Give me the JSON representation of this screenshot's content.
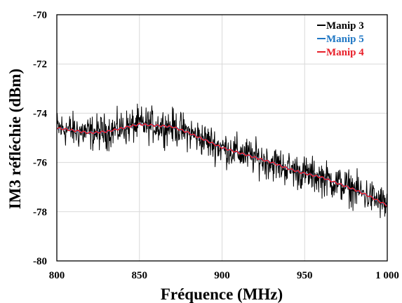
{
  "chart_data": {
    "type": "line",
    "title": "",
    "xlabel": "Fréquence (MHz)",
    "ylabel": "IM3 réfléchie (dBm)",
    "xlim": [
      800,
      1000
    ],
    "ylim": [
      -80,
      -70
    ],
    "x_ticks": [
      800,
      850,
      900,
      950,
      1000
    ],
    "x_tick_labels": [
      "800",
      "850",
      "900",
      "950",
      "1 000"
    ],
    "y_ticks": [
      -80,
      -78,
      -76,
      -74,
      -72,
      -70
    ],
    "y_tick_labels": [
      "-80",
      "-78",
      "-76",
      "-74",
      "-72",
      "-70"
    ],
    "grid": true,
    "legend_position": "top-right",
    "series": [
      {
        "name": "Manip 3",
        "color": "#000000",
        "style": "noisy",
        "noise_amplitude_db": 0.35,
        "x": [
          800,
          810,
          820,
          830,
          840,
          850,
          860,
          870,
          880,
          890,
          900,
          910,
          920,
          930,
          940,
          950,
          960,
          970,
          980,
          990,
          1000
        ],
        "values": [
          -74.6,
          -74.7,
          -74.8,
          -74.75,
          -74.6,
          -74.45,
          -74.5,
          -74.55,
          -74.8,
          -75.1,
          -75.4,
          -75.6,
          -75.8,
          -76.0,
          -76.25,
          -76.45,
          -76.6,
          -76.85,
          -77.1,
          -77.4,
          -77.75
        ]
      },
      {
        "name": "Manip 5",
        "color": "#1f77c4",
        "style": "smooth",
        "x": [
          800,
          810,
          820,
          830,
          840,
          850,
          860,
          870,
          880,
          890,
          900,
          910,
          920,
          930,
          940,
          950,
          960,
          970,
          980,
          990,
          1000
        ],
        "values": [
          -74.6,
          -74.7,
          -74.8,
          -74.75,
          -74.6,
          -74.45,
          -74.5,
          -74.55,
          -74.8,
          -75.1,
          -75.4,
          -75.6,
          -75.8,
          -76.0,
          -76.25,
          -76.45,
          -76.6,
          -76.85,
          -77.1,
          -77.4,
          -77.75
        ]
      },
      {
        "name": "Manip 4",
        "color": "#e8202a",
        "style": "smooth",
        "x": [
          800,
          810,
          820,
          830,
          840,
          850,
          860,
          870,
          880,
          890,
          900,
          910,
          920,
          930,
          940,
          950,
          960,
          970,
          980,
          990,
          1000
        ],
        "values": [
          -74.6,
          -74.7,
          -74.8,
          -74.75,
          -74.6,
          -74.45,
          -74.5,
          -74.55,
          -74.8,
          -75.1,
          -75.4,
          -75.6,
          -75.8,
          -76.0,
          -76.25,
          -76.45,
          -76.6,
          -76.85,
          -77.1,
          -77.4,
          -77.75
        ]
      }
    ]
  }
}
